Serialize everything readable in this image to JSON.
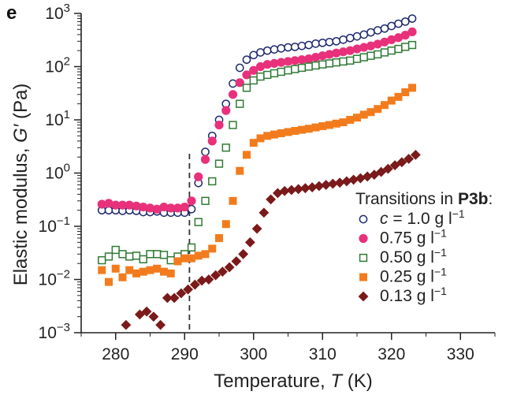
{
  "chart_data": {
    "type": "scatter",
    "panel_label": "e",
    "xlabel": "Temperature, ",
    "xlabel_var": "T",
    "xlabel_unit": " (K)",
    "ylabel": "Elastic modulus, ",
    "ylabel_var": "G′",
    "ylabel_unit": " (Pa)",
    "xlim": [
      275,
      335
    ],
    "ylim": [
      0.001,
      1000
    ],
    "y_scale": "log",
    "x_ticks": [
      280,
      290,
      300,
      310,
      320,
      330
    ],
    "y_ticks": [
      {
        "value": 0.001,
        "base": "10",
        "exp": "−3"
      },
      {
        "value": 0.01,
        "base": "10",
        "exp": "−2"
      },
      {
        "value": 0.1,
        "base": "10",
        "exp": "−1"
      },
      {
        "value": 1,
        "base": "10",
        "exp": "0"
      },
      {
        "value": 10,
        "base": "10",
        "exp": "1"
      },
      {
        "value": 100,
        "base": "10",
        "exp": "2"
      },
      {
        "value": 1000,
        "base": "10",
        "exp": "3"
      }
    ],
    "vline_x": 290.7,
    "legend": {
      "title_prefix": "Transitions in ",
      "title_bold": "P3b",
      "title_suffix": ":",
      "placement": "lower-right"
    },
    "series": [
      {
        "name": "c = 1.0 g l−1",
        "legend_var": "c",
        "legend_text": " = 1.0 g l",
        "legend_exp": "−1",
        "marker": "circle-open",
        "color": "#1f2a6e",
        "points": [
          [
            278,
            0.2
          ],
          [
            279,
            0.2
          ],
          [
            280,
            0.2
          ],
          [
            281,
            0.195
          ],
          [
            282,
            0.2
          ],
          [
            283,
            0.195
          ],
          [
            284,
            0.185
          ],
          [
            285,
            0.185
          ],
          [
            286,
            0.19
          ],
          [
            287,
            0.18
          ],
          [
            288,
            0.18
          ],
          [
            289,
            0.18
          ],
          [
            290,
            0.18
          ],
          [
            291,
            0.21
          ],
          [
            292,
            0.65
          ],
          [
            293,
            2.5
          ],
          [
            294,
            5
          ],
          [
            295,
            10
          ],
          [
            296,
            20
          ],
          [
            297,
            48
          ],
          [
            298,
            95
          ],
          [
            299,
            135
          ],
          [
            300,
            165
          ],
          [
            301,
            185
          ],
          [
            302,
            200
          ],
          [
            303,
            210
          ],
          [
            304,
            220
          ],
          [
            305,
            230
          ],
          [
            306,
            235
          ],
          [
            307,
            245
          ],
          [
            308,
            255
          ],
          [
            309,
            270
          ],
          [
            310,
            280
          ],
          [
            311,
            290
          ],
          [
            312,
            300
          ],
          [
            313,
            320
          ],
          [
            314,
            345
          ],
          [
            315,
            370
          ],
          [
            316,
            400
          ],
          [
            317,
            440
          ],
          [
            318,
            480
          ],
          [
            319,
            520
          ],
          [
            320,
            580
          ],
          [
            321,
            640
          ],
          [
            322,
            700
          ],
          [
            323,
            800
          ]
        ]
      },
      {
        "name": "0.75 g l−1",
        "legend_text": "0.75 g l",
        "legend_exp": "−1",
        "marker": "circle-filled",
        "color": "#e8317a",
        "points": [
          [
            278,
            0.26
          ],
          [
            279,
            0.27
          ],
          [
            280,
            0.25
          ],
          [
            281,
            0.25
          ],
          [
            282,
            0.25
          ],
          [
            283,
            0.24
          ],
          [
            284,
            0.23
          ],
          [
            285,
            0.22
          ],
          [
            286,
            0.21
          ],
          [
            287,
            0.23
          ],
          [
            288,
            0.22
          ],
          [
            289,
            0.22
          ],
          [
            290,
            0.23
          ],
          [
            291,
            0.3
          ],
          [
            292,
            0.85
          ],
          [
            293,
            1.8
          ],
          [
            294,
            4
          ],
          [
            295,
            8
          ],
          [
            296,
            15
          ],
          [
            297,
            30
          ],
          [
            298,
            50
          ],
          [
            299,
            70
          ],
          [
            300,
            85
          ],
          [
            301,
            100
          ],
          [
            302,
            110
          ],
          [
            303,
            115
          ],
          [
            304,
            120
          ],
          [
            305,
            125
          ],
          [
            306,
            130
          ],
          [
            307,
            135
          ],
          [
            308,
            140
          ],
          [
            309,
            150
          ],
          [
            310,
            160
          ],
          [
            311,
            170
          ],
          [
            312,
            180
          ],
          [
            313,
            190
          ],
          [
            314,
            200
          ],
          [
            315,
            215
          ],
          [
            316,
            230
          ],
          [
            317,
            245
          ],
          [
            318,
            265
          ],
          [
            319,
            290
          ],
          [
            320,
            320
          ],
          [
            321,
            350
          ],
          [
            322,
            390
          ],
          [
            323,
            450
          ]
        ]
      },
      {
        "name": "0.50 g l−1",
        "legend_text": "0.50 g l",
        "legend_exp": "−1",
        "marker": "square-open",
        "color": "#2f7a34",
        "points": [
          [
            278,
            0.023
          ],
          [
            279,
            0.027
          ],
          [
            280,
            0.036
          ],
          [
            281,
            0.03
          ],
          [
            282,
            0.027
          ],
          [
            283,
            0.028
          ],
          [
            284,
            0.024
          ],
          [
            285,
            0.03
          ],
          [
            286,
            0.03
          ],
          [
            287,
            0.029
          ],
          [
            288,
            0.023
          ],
          [
            289,
            0.027
          ],
          [
            290,
            0.03
          ],
          [
            291,
            0.04
          ],
          [
            292,
            0.12
          ],
          [
            293,
            0.3
          ],
          [
            294,
            0.7
          ],
          [
            295,
            1.5
          ],
          [
            296,
            3
          ],
          [
            297,
            8
          ],
          [
            298,
            20
          ],
          [
            299,
            40
          ],
          [
            300,
            55
          ],
          [
            301,
            65
          ],
          [
            302,
            70
          ],
          [
            303,
            75
          ],
          [
            304,
            80
          ],
          [
            305,
            85
          ],
          [
            306,
            90
          ],
          [
            307,
            95
          ],
          [
            308,
            100
          ],
          [
            309,
            105
          ],
          [
            310,
            110
          ],
          [
            311,
            115
          ],
          [
            312,
            120
          ],
          [
            313,
            125
          ],
          [
            314,
            130
          ],
          [
            315,
            140
          ],
          [
            316,
            150
          ],
          [
            317,
            160
          ],
          [
            318,
            170
          ],
          [
            319,
            185
          ],
          [
            320,
            200
          ],
          [
            321,
            215
          ],
          [
            322,
            235
          ],
          [
            323,
            255
          ]
        ]
      },
      {
        "name": "0.25 g l−1",
        "legend_text": "0.25 g l",
        "legend_exp": "−1",
        "marker": "square-filled",
        "color": "#f27c1d",
        "points": [
          [
            278,
            0.015
          ],
          [
            279,
            0.009
          ],
          [
            280,
            0.016
          ],
          [
            281,
            0.011
          ],
          [
            282,
            0.015
          ],
          [
            283,
            0.013
          ],
          [
            284,
            0.014
          ],
          [
            285,
            0.015
          ],
          [
            286,
            0.016
          ],
          [
            287,
            0.014
          ],
          [
            288,
            0.013
          ],
          [
            289,
            0.022
          ],
          [
            290,
            0.025
          ],
          [
            291,
            0.025
          ],
          [
            292,
            0.028
          ],
          [
            293,
            0.03
          ],
          [
            294,
            0.038
          ],
          [
            295,
            0.06
          ],
          [
            296,
            0.11
          ],
          [
            297,
            0.3
          ],
          [
            298,
            1.1
          ],
          [
            299,
            2.2
          ],
          [
            300,
            3.7
          ],
          [
            301,
            4.5
          ],
          [
            302,
            5
          ],
          [
            303,
            5.3
          ],
          [
            304,
            5.6
          ],
          [
            305,
            5.9
          ],
          [
            306,
            6.2
          ],
          [
            307,
            6.5
          ],
          [
            308,
            6.8
          ],
          [
            309,
            7.2
          ],
          [
            310,
            7.6
          ],
          [
            311,
            8
          ],
          [
            312,
            8.5
          ],
          [
            313,
            9
          ],
          [
            314,
            10
          ],
          [
            315,
            11
          ],
          [
            316,
            12.5
          ],
          [
            317,
            14
          ],
          [
            318,
            16
          ],
          [
            319,
            19
          ],
          [
            320,
            23
          ],
          [
            321,
            27
          ],
          [
            322,
            33
          ],
          [
            323,
            40
          ]
        ]
      },
      {
        "name": "0.13 g l−1",
        "legend_text": "0.13 g l",
        "legend_exp": "−1",
        "marker": "diamond-filled",
        "color": "#7a1a1a",
        "points": [
          [
            281.5,
            0.0014
          ],
          [
            283.5,
            0.0022
          ],
          [
            284.5,
            0.0025
          ],
          [
            285.5,
            0.002
          ],
          [
            286.5,
            0.0014
          ],
          [
            287.5,
            0.0045
          ],
          [
            288.5,
            0.0045
          ],
          [
            289.5,
            0.0055
          ],
          [
            290.5,
            0.0065
          ],
          [
            291.5,
            0.008
          ],
          [
            292.5,
            0.0095
          ],
          [
            293.5,
            0.01
          ],
          [
            294.5,
            0.012
          ],
          [
            295.5,
            0.014
          ],
          [
            296.5,
            0.017
          ],
          [
            297.5,
            0.022
          ],
          [
            298.5,
            0.03
          ],
          [
            299.5,
            0.05
          ],
          [
            300.5,
            0.09
          ],
          [
            301.5,
            0.18
          ],
          [
            302.5,
            0.32
          ],
          [
            303.5,
            0.42
          ],
          [
            304.5,
            0.46
          ],
          [
            305.5,
            0.48
          ],
          [
            306.5,
            0.5
          ],
          [
            307.5,
            0.52
          ],
          [
            308.5,
            0.54
          ],
          [
            309.5,
            0.57
          ],
          [
            310.5,
            0.6
          ],
          [
            311.5,
            0.63
          ],
          [
            312.5,
            0.66
          ],
          [
            313.5,
            0.7
          ],
          [
            314.5,
            0.75
          ],
          [
            315.5,
            0.8
          ],
          [
            316.5,
            0.86
          ],
          [
            317.5,
            0.93
          ],
          [
            318.5,
            1.05
          ],
          [
            319.5,
            1.2
          ],
          [
            320.5,
            1.4
          ],
          [
            321.5,
            1.6
          ],
          [
            322.5,
            1.85
          ],
          [
            323.5,
            2.2
          ]
        ]
      }
    ]
  }
}
